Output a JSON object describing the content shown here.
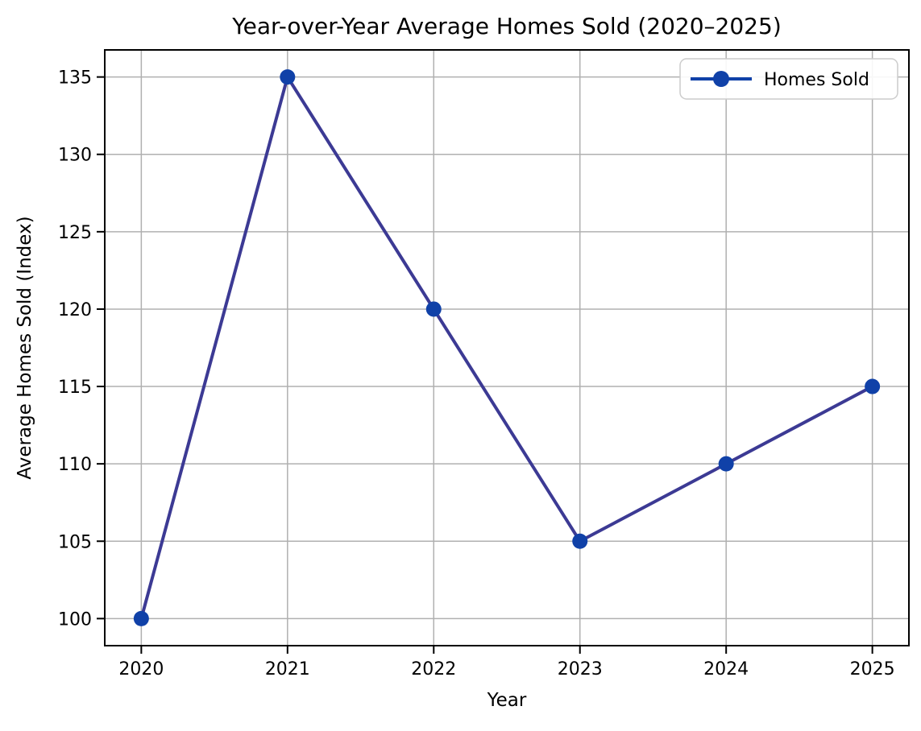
{
  "chart_data": {
    "type": "line",
    "title": "Year-over-Year Average Homes Sold (2020–2025)",
    "xlabel": "Year",
    "ylabel": "Average Homes Sold (Index)",
    "categories": [
      2020,
      2021,
      2022,
      2023,
      2024,
      2025
    ],
    "series": [
      {
        "name": "Homes Sold",
        "values": [
          100,
          135,
          120,
          105,
          110,
          115
        ]
      }
    ],
    "xlim": [
      2019.75,
      2025.25
    ],
    "ylim": [
      98.25,
      136.75
    ],
    "yticks": [
      100,
      105,
      110,
      115,
      120,
      125,
      130,
      135
    ],
    "grid": true,
    "legend_position": "upper right",
    "colors": {
      "line": "#3c3a94",
      "marker": "#1041a8",
      "grid": "#b0b0b0",
      "spine": "#000000",
      "text": "#000000",
      "legend_border": "#cccccc",
      "background": "#ffffff"
    }
  }
}
